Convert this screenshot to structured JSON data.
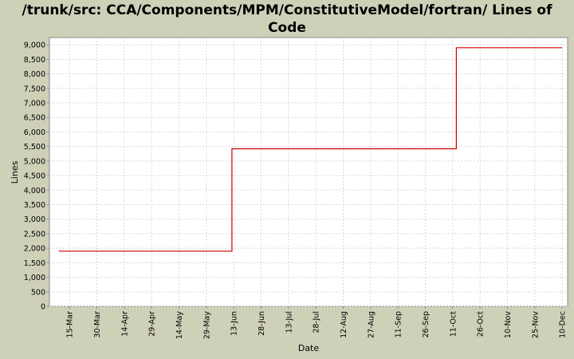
{
  "chart_data": {
    "type": "line",
    "step": true,
    "title_line1": "/trunk/src: CCA/Components/MPM/ConstitutiveModel/fortran/ Lines of",
    "title_line2": "Code",
    "xlabel": "Date",
    "ylabel": "Lines",
    "ylim": [
      0,
      9250
    ],
    "yticks": [
      0,
      500,
      1000,
      1500,
      2000,
      2500,
      3000,
      3500,
      4000,
      4500,
      5000,
      5500,
      6000,
      6500,
      7000,
      7500,
      8000,
      8500,
      9000
    ],
    "ytick_labels": [
      "0",
      "500",
      "1,000",
      "1,500",
      "2,000",
      "2,500",
      "3,000",
      "3,500",
      "4,000",
      "4,500",
      "5,000",
      "5,500",
      "6,000",
      "6,500",
      "7,000",
      "7,500",
      "8,000",
      "8,500",
      "9,000"
    ],
    "xlim": [
      "Mar 4",
      "Dec 13"
    ],
    "xticks": [
      "Mar 15",
      "Mar 30",
      "Apr 14",
      "Apr 29",
      "May 14",
      "May 29",
      "Jun 13",
      "Jun 28",
      "Jul 13",
      "Jul 28",
      "Aug 12",
      "Aug 27",
      "Sep 11",
      "Sep 26",
      "Oct 11",
      "Oct 26",
      "Nov 10",
      "Nov 25",
      "Dec 10"
    ],
    "xtick_labels": [
      "15-Mar",
      "30-Mar",
      "14-Apr",
      "29-Apr",
      "14-May",
      "29-May",
      "13-Jun",
      "28-Jun",
      "13-Jul",
      "28-Jul",
      "12-Aug",
      "27-Aug",
      "11-Sep",
      "26-Sep",
      "11-Oct",
      "26-Oct",
      "10-Nov",
      "25-Nov",
      "10-Dec"
    ],
    "grid": true,
    "series": [
      {
        "color": "#cc0000",
        "points": [
          {
            "x": "Mar 9",
            "y": 1900
          },
          {
            "x": "Jun 12",
            "y": 1900
          },
          {
            "x": "Jun 12",
            "y": 5420
          },
          {
            "x": "Oct 13",
            "y": 5420
          },
          {
            "x": "Oct 13",
            "y": 8900
          },
          {
            "x": "Dec 10",
            "y": 8900
          }
        ]
      }
    ]
  }
}
